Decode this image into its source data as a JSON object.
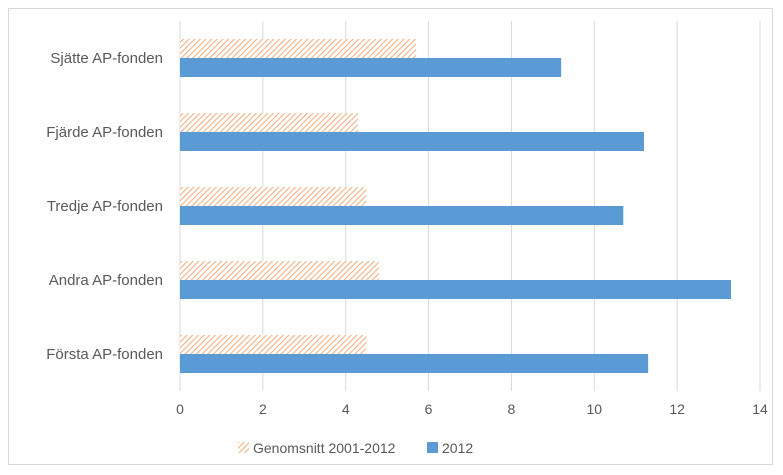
{
  "chart_data": {
    "type": "bar",
    "orientation": "horizontal",
    "categories": [
      "Sjätte AP-fonden",
      "Fjärde AP-fonden",
      "Tredje AP-fonden",
      "Andra AP-fonden",
      "Första AP-fonden"
    ],
    "series": [
      {
        "name": "Genomsnitt 2001-2012",
        "values": [
          5.7,
          4.3,
          4.5,
          4.8,
          4.5
        ],
        "color": "#f4b183",
        "pattern": "diagonal-hatch"
      },
      {
        "name": "2012",
        "values": [
          9.2,
          11.2,
          10.7,
          13.3,
          11.3
        ],
        "color": "#5b9bd5",
        "pattern": "solid"
      }
    ],
    "xlim": [
      0,
      14
    ],
    "xticks": [
      "0",
      "2",
      "4",
      "6",
      "8",
      "10",
      "12",
      "14"
    ],
    "grid": "vertical",
    "legend_position": "bottom"
  }
}
